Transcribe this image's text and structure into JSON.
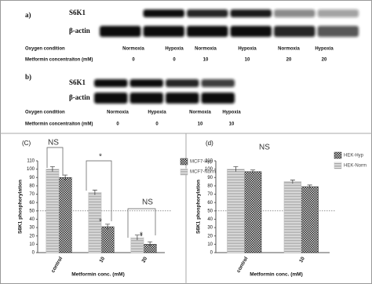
{
  "blots": [
    {
      "label": "a)",
      "rows": [
        "S6K1",
        "β-actin"
      ],
      "oxygen_label": "Oxygen condition",
      "oxygen": [
        "Normoxia",
        "Hypoxia",
        "Normoxia",
        "Hypoxia",
        "Normoxia",
        "Hypoxia"
      ],
      "metformin_label": "Metformin concentraiton (mM)",
      "metformin": [
        0,
        0,
        10,
        10,
        20,
        20
      ]
    },
    {
      "label": "b)",
      "rows": [
        "S6K1",
        "β-actin"
      ],
      "oxygen_label": "Oxygen condition",
      "oxygen": [
        "Normoxia",
        "Hypoxia",
        "Normoxia",
        "Hypoxia"
      ],
      "metformin_label": "Metformin concentraiton (mM)",
      "metformin": [
        0,
        0,
        10,
        10
      ]
    }
  ],
  "chart_data": [
    {
      "type": "bar",
      "title": "(C)",
      "x_label": "Metformin conc. (mM)",
      "y_label": "S6K1 phosphorylation",
      "categories": [
        "control",
        "10",
        "20"
      ],
      "series": [
        {
          "name": "MCF7-Hyp",
          "color": "#333333",
          "pattern": "checker",
          "values": [
            90,
            31,
            10
          ],
          "errors": [
            3,
            3,
            3
          ]
        },
        {
          "name": "MCF7-Norm",
          "color": "#bbbbbb",
          "pattern": "stripes",
          "values": [
            100,
            72,
            18
          ],
          "errors": [
            3,
            3,
            3
          ]
        }
      ],
      "ylim": [
        0,
        110
      ],
      "yticks": [
        0,
        10,
        20,
        30,
        40,
        50,
        60,
        70,
        80,
        90,
        100,
        110
      ],
      "reference_line": 50,
      "annotations": [
        "NS",
        "*",
        "*",
        "*",
        "NS",
        "*"
      ]
    },
    {
      "type": "bar",
      "title": "(d)",
      "x_label": "Metformin conc. (mM)",
      "y_label": "S6K1 phosphorylation",
      "categories": [
        "control",
        "10"
      ],
      "series": [
        {
          "name": "HEK-Hyp",
          "color": "#333333",
          "pattern": "checker",
          "values": [
            97,
            79
          ],
          "errors": [
            2,
            2
          ]
        },
        {
          "name": "HEK-Norm",
          "color": "#bbbbbb",
          "pattern": "stripes",
          "values": [
            100,
            85
          ],
          "errors": [
            3,
            2
          ]
        }
      ],
      "ylim": [
        0,
        110
      ],
      "yticks": [
        0,
        10,
        20,
        30,
        40,
        50,
        60,
        70,
        80,
        90,
        100,
        110
      ],
      "reference_line": 50,
      "annotations": [
        "NS"
      ]
    }
  ]
}
